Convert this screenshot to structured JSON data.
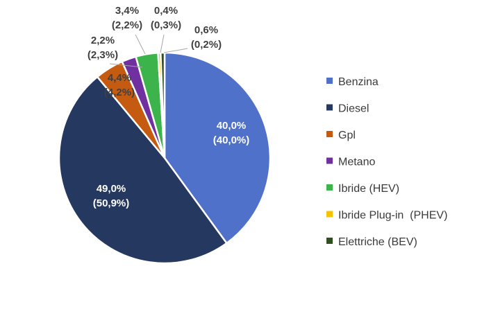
{
  "chart_data": {
    "type": "pie",
    "title": "",
    "legend_position": "right",
    "slices": [
      {
        "name": "Benzina",
        "value": 40.0,
        "label": "40,0%",
        "sublabel": "(40,0%)",
        "color": "#4f71c9",
        "label_color": "#ffffff"
      },
      {
        "name": "Diesel",
        "value": 49.0,
        "label": "49,0%",
        "sublabel": "(50,9%)",
        "color": "#25385f",
        "label_color": "#ffffff"
      },
      {
        "name": "Gpl",
        "value": 4.4,
        "label": "4,4%",
        "sublabel": "(4,2%)",
        "color": "#c55a11",
        "label_color": "#404040"
      },
      {
        "name": "Metano",
        "value": 2.2,
        "label": "2,2%",
        "sublabel": "(2,3%)",
        "color": "#7030a0",
        "label_color": "#404040"
      },
      {
        "name": "Ibride (HEV)",
        "value": 3.4,
        "label": "3,4%",
        "sublabel": "(2,2%)",
        "color": "#3cb44b",
        "label_color": "#404040"
      },
      {
        "name": "Ibride Plug-in  (PHEV)",
        "value": 0.4,
        "label": "0,4%",
        "sublabel": "(0,3%)",
        "color": "#f5c400",
        "label_color": "#404040"
      },
      {
        "name": "Elettriche (BEV)",
        "value": 0.6,
        "label": "0,6%",
        "sublabel": "(0,2%)",
        "color": "#2f4f1f",
        "label_color": "#404040"
      }
    ]
  }
}
